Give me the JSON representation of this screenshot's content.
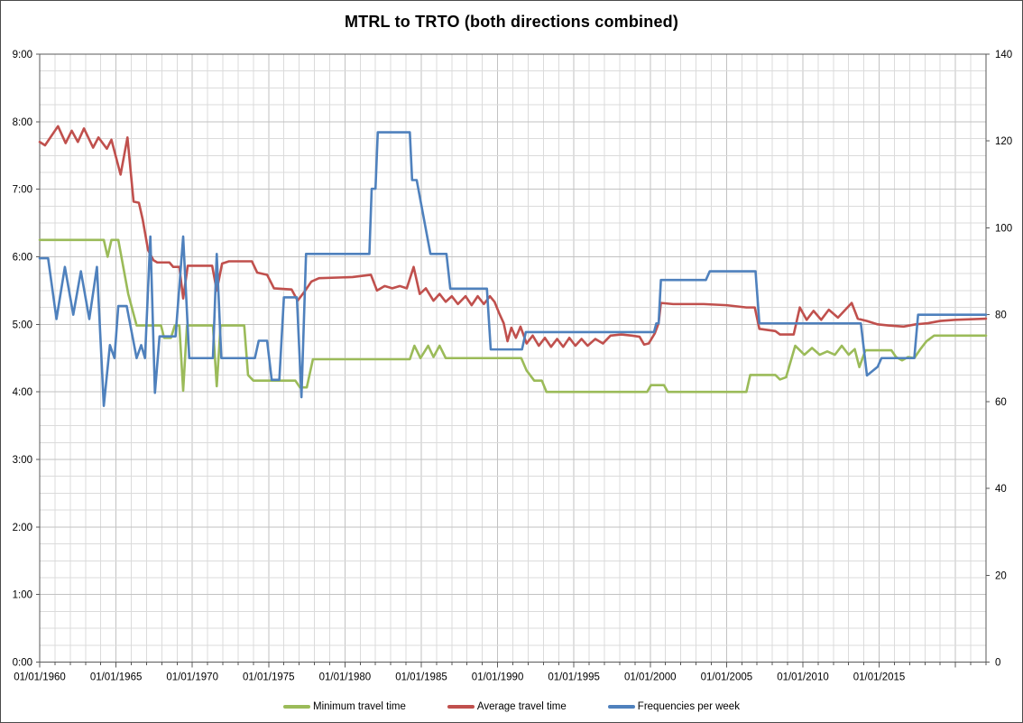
{
  "title": "MTRL to TRTO (both directions combined)",
  "chart_data": {
    "type": "line",
    "title": "MTRL to TRTO (both directions combined)",
    "grid": true,
    "legend_position": "bottom",
    "x_axis": {
      "kind": "date",
      "tick_labels": [
        "01/01/1960",
        "01/01/1965",
        "01/01/1970",
        "01/01/1975",
        "01/01/1980",
        "01/01/1985",
        "01/01/1990",
        "01/01/1995",
        "01/01/2000",
        "01/01/2005",
        "01/01/2010",
        "01/01/2015"
      ],
      "tick_years": [
        1960,
        1965,
        1970,
        1975,
        1980,
        1985,
        1990,
        1995,
        2000,
        2005,
        2010,
        2015
      ],
      "range_years": [
        1960,
        2022
      ],
      "minor_gridline_interval_years": 1
    },
    "y_axis_left": {
      "format": "h:mm travel time",
      "tick_labels": [
        "0:00",
        "1:00",
        "2:00",
        "3:00",
        "4:00",
        "5:00",
        "6:00",
        "7:00",
        "8:00",
        "9:00"
      ],
      "tick_minutes": [
        0,
        60,
        120,
        180,
        240,
        300,
        360,
        420,
        480,
        540
      ],
      "range_minutes": [
        0,
        540
      ],
      "minor_gridline_interval_minutes": 15,
      "applies_to": [
        "Minimum travel time",
        "Average travel time"
      ]
    },
    "y_axis_right": {
      "tick_labels": [
        "0",
        "20",
        "40",
        "60",
        "80",
        "100",
        "120",
        "140"
      ],
      "tick_values": [
        0,
        20,
        40,
        60,
        80,
        100,
        120,
        140
      ],
      "range": [
        0,
        140
      ],
      "applies_to": [
        "Frequencies per week"
      ]
    },
    "series": [
      {
        "name": "Minimum travel time",
        "color": "#9BBB59",
        "axis": "left",
        "unit": "minutes",
        "points": [
          [
            1960.0,
            375
          ],
          [
            1964.2,
            375
          ],
          [
            1964.45,
            360
          ],
          [
            1964.7,
            375
          ],
          [
            1965.15,
            375
          ],
          [
            1965.8,
            327
          ],
          [
            1966.35,
            299
          ],
          [
            1967.95,
            299
          ],
          [
            1968.15,
            288
          ],
          [
            1968.6,
            288
          ],
          [
            1968.85,
            299
          ],
          [
            1969.15,
            299
          ],
          [
            1969.4,
            241
          ],
          [
            1969.65,
            299
          ],
          [
            1971.35,
            299
          ],
          [
            1971.6,
            245
          ],
          [
            1971.85,
            299
          ],
          [
            1973.4,
            299
          ],
          [
            1973.65,
            255
          ],
          [
            1974.0,
            250
          ],
          [
            1976.75,
            250
          ],
          [
            1977.05,
            244
          ],
          [
            1977.5,
            244
          ],
          [
            1977.9,
            269
          ],
          [
            1984.25,
            269
          ],
          [
            1984.55,
            281
          ],
          [
            1984.95,
            270
          ],
          [
            1985.45,
            281
          ],
          [
            1985.8,
            271
          ],
          [
            1986.2,
            281
          ],
          [
            1986.6,
            270
          ],
          [
            1991.55,
            270
          ],
          [
            1991.9,
            259
          ],
          [
            1992.4,
            250
          ],
          [
            1992.9,
            250
          ],
          [
            1993.2,
            240
          ],
          [
            1999.8,
            240
          ],
          [
            2000.05,
            246
          ],
          [
            2000.9,
            246
          ],
          [
            2001.15,
            240
          ],
          [
            2006.3,
            240
          ],
          [
            2006.55,
            255
          ],
          [
            2008.2,
            255
          ],
          [
            2008.5,
            251
          ],
          [
            2008.9,
            253
          ],
          [
            2009.5,
            281
          ],
          [
            2010.1,
            273
          ],
          [
            2010.6,
            279
          ],
          [
            2011.1,
            273
          ],
          [
            2011.6,
            276
          ],
          [
            2012.1,
            273
          ],
          [
            2012.55,
            281
          ],
          [
            2013.0,
            273
          ],
          [
            2013.4,
            278
          ],
          [
            2013.7,
            262
          ],
          [
            2014.1,
            277
          ],
          [
            2015.8,
            277
          ],
          [
            2016.1,
            271
          ],
          [
            2016.5,
            268
          ],
          [
            2016.9,
            271
          ],
          [
            2017.3,
            270
          ],
          [
            2017.7,
            278
          ],
          [
            2018.1,
            285
          ],
          [
            2018.6,
            290
          ],
          [
            2022.0,
            290
          ]
        ]
      },
      {
        "name": "Average travel time",
        "color": "#C0504D",
        "axis": "left",
        "unit": "minutes",
        "points": [
          [
            1960.0,
            462
          ],
          [
            1960.35,
            459
          ],
          [
            1961.2,
            476
          ],
          [
            1961.7,
            461
          ],
          [
            1962.1,
            472
          ],
          [
            1962.5,
            462
          ],
          [
            1962.9,
            474
          ],
          [
            1963.5,
            457
          ],
          [
            1963.85,
            466
          ],
          [
            1964.4,
            456
          ],
          [
            1964.7,
            464
          ],
          [
            1965.3,
            433
          ],
          [
            1965.75,
            466
          ],
          [
            1966.15,
            409
          ],
          [
            1966.5,
            408
          ],
          [
            1966.75,
            393
          ],
          [
            1967.1,
            366
          ],
          [
            1967.45,
            357
          ],
          [
            1967.7,
            355
          ],
          [
            1968.5,
            355
          ],
          [
            1968.75,
            351
          ],
          [
            1969.15,
            351
          ],
          [
            1969.4,
            323
          ],
          [
            1969.7,
            352
          ],
          [
            1971.3,
            352
          ],
          [
            1971.6,
            330
          ],
          [
            1971.95,
            354
          ],
          [
            1972.4,
            356
          ],
          [
            1973.9,
            356
          ],
          [
            1974.25,
            346
          ],
          [
            1974.9,
            344
          ],
          [
            1975.35,
            332
          ],
          [
            1976.5,
            331
          ],
          [
            1976.9,
            321
          ],
          [
            1977.4,
            330
          ],
          [
            1977.8,
            338
          ],
          [
            1978.3,
            341
          ],
          [
            1980.5,
            342
          ],
          [
            1981.7,
            344
          ],
          [
            1982.1,
            330
          ],
          [
            1982.6,
            334
          ],
          [
            1983.1,
            332
          ],
          [
            1983.6,
            334
          ],
          [
            1984.05,
            332
          ],
          [
            1984.5,
            351
          ],
          [
            1984.9,
            327
          ],
          [
            1985.3,
            332
          ],
          [
            1985.8,
            321
          ],
          [
            1986.2,
            327
          ],
          [
            1986.6,
            320
          ],
          [
            1987.0,
            325
          ],
          [
            1987.4,
            318
          ],
          [
            1987.9,
            325
          ],
          [
            1988.3,
            317
          ],
          [
            1988.7,
            325
          ],
          [
            1989.1,
            318
          ],
          [
            1989.5,
            325
          ],
          [
            1989.8,
            320
          ],
          [
            1990.1,
            310
          ],
          [
            1990.4,
            301
          ],
          [
            1990.65,
            285
          ],
          [
            1990.9,
            297
          ],
          [
            1991.2,
            288
          ],
          [
            1991.5,
            298
          ],
          [
            1991.9,
            283
          ],
          [
            1992.3,
            290
          ],
          [
            1992.7,
            281
          ],
          [
            1993.1,
            288
          ],
          [
            1993.5,
            280
          ],
          [
            1993.9,
            287
          ],
          [
            1994.3,
            280
          ],
          [
            1994.7,
            288
          ],
          [
            1995.1,
            281
          ],
          [
            1995.5,
            287
          ],
          [
            1995.9,
            281
          ],
          [
            1996.4,
            287
          ],
          [
            1996.9,
            283
          ],
          [
            1997.4,
            290
          ],
          [
            1998.1,
            291
          ],
          [
            1998.8,
            290
          ],
          [
            1999.3,
            289
          ],
          [
            1999.6,
            282
          ],
          [
            1999.9,
            283
          ],
          [
            2000.3,
            292
          ],
          [
            2000.55,
            301
          ],
          [
            2000.7,
            319
          ],
          [
            2001.5,
            318
          ],
          [
            2003.5,
            318
          ],
          [
            2005.0,
            317
          ],
          [
            2006.3,
            315
          ],
          [
            2006.85,
            315
          ],
          [
            2007.15,
            296
          ],
          [
            2008.2,
            294
          ],
          [
            2008.5,
            291
          ],
          [
            2009.4,
            291
          ],
          [
            2009.8,
            315
          ],
          [
            2010.25,
            304
          ],
          [
            2010.7,
            312
          ],
          [
            2011.2,
            304
          ],
          [
            2011.7,
            313
          ],
          [
            2012.3,
            306
          ],
          [
            2013.2,
            319
          ],
          [
            2013.6,
            305
          ],
          [
            2014.2,
            303
          ],
          [
            2014.9,
            300
          ],
          [
            2015.6,
            299
          ],
          [
            2016.6,
            298
          ],
          [
            2017.4,
            300
          ],
          [
            2018.2,
            301
          ],
          [
            2019.0,
            303
          ],
          [
            2020.0,
            304
          ],
          [
            2022.0,
            305
          ]
        ]
      },
      {
        "name": "Frequencies per week",
        "color": "#4F81BD",
        "axis": "right",
        "unit": "per week",
        "points": [
          [
            1960.0,
            93
          ],
          [
            1960.55,
            93
          ],
          [
            1961.1,
            79
          ],
          [
            1961.65,
            91
          ],
          [
            1962.2,
            80
          ],
          [
            1962.7,
            90
          ],
          [
            1963.25,
            79
          ],
          [
            1963.75,
            91
          ],
          [
            1964.2,
            59
          ],
          [
            1964.6,
            73
          ],
          [
            1964.9,
            70
          ],
          [
            1965.15,
            82
          ],
          [
            1965.7,
            82
          ],
          [
            1966.35,
            70
          ],
          [
            1966.65,
            73
          ],
          [
            1966.9,
            70
          ],
          [
            1967.25,
            98
          ],
          [
            1967.55,
            62
          ],
          [
            1967.85,
            75
          ],
          [
            1968.9,
            75
          ],
          [
            1969.4,
            98
          ],
          [
            1969.8,
            70
          ],
          [
            1971.35,
            70
          ],
          [
            1971.6,
            94
          ],
          [
            1971.9,
            70
          ],
          [
            1974.1,
            70
          ],
          [
            1974.35,
            74
          ],
          [
            1974.9,
            74
          ],
          [
            1975.2,
            65
          ],
          [
            1975.7,
            65
          ],
          [
            1976.0,
            84
          ],
          [
            1976.85,
            84
          ],
          [
            1977.15,
            61
          ],
          [
            1977.45,
            94
          ],
          [
            1981.6,
            94
          ],
          [
            1981.75,
            109
          ],
          [
            1982.0,
            109
          ],
          [
            1982.15,
            122
          ],
          [
            1984.25,
            122
          ],
          [
            1984.4,
            111
          ],
          [
            1984.7,
            111
          ],
          [
            1985.6,
            94
          ],
          [
            1986.65,
            94
          ],
          [
            1986.9,
            86
          ],
          [
            1989.3,
            86
          ],
          [
            1989.55,
            72
          ],
          [
            1991.6,
            72
          ],
          [
            1991.85,
            76
          ],
          [
            2000.25,
            76
          ],
          [
            2000.4,
            78
          ],
          [
            2000.55,
            78
          ],
          [
            2000.7,
            88
          ],
          [
            2003.65,
            88
          ],
          [
            2003.9,
            90
          ],
          [
            2006.9,
            90
          ],
          [
            2007.15,
            78
          ],
          [
            2013.8,
            78
          ],
          [
            2014.2,
            66
          ],
          [
            2014.9,
            68
          ],
          [
            2015.15,
            70
          ],
          [
            2017.3,
            70
          ],
          [
            2017.55,
            80
          ],
          [
            2022.0,
            80
          ]
        ]
      }
    ]
  }
}
